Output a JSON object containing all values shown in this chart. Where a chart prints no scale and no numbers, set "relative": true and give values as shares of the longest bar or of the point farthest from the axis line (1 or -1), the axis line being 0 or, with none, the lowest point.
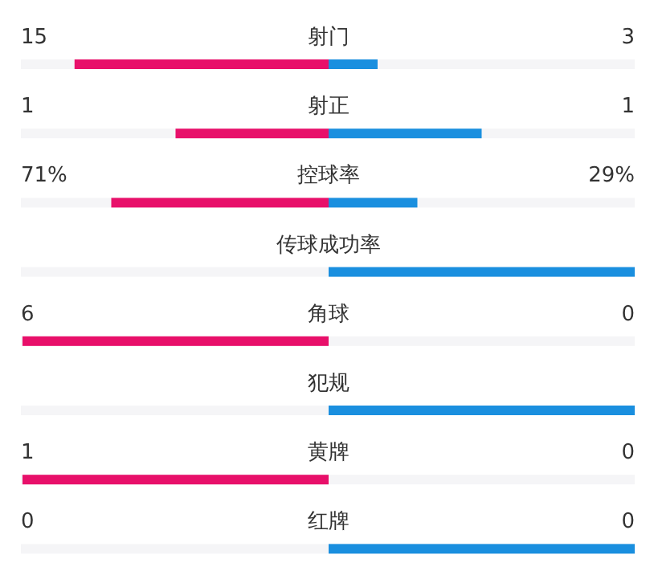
{
  "chart_data": {
    "type": "bar",
    "orientation": "horizontal",
    "relative": true,
    "categories": [
      "射门",
      "射正",
      "控球率",
      "传球成功率",
      "角球",
      "犯规",
      "黄牌",
      "红牌"
    ],
    "series": [
      {
        "color": "#e8106a",
        "values": [
          -0.83,
          -0.5,
          -0.71,
          0,
          -1,
          0,
          -1,
          0
        ]
      },
      {
        "color": "#1a8fdf",
        "values": [
          0.16,
          0.5,
          0.29,
          1,
          0,
          1,
          0,
          1
        ]
      }
    ],
    "annotations": [
      "15",
      "3",
      "1",
      "1",
      "71%",
      "29%",
      "6",
      "0",
      "1",
      "0",
      "0",
      "0"
    ]
  }
}
